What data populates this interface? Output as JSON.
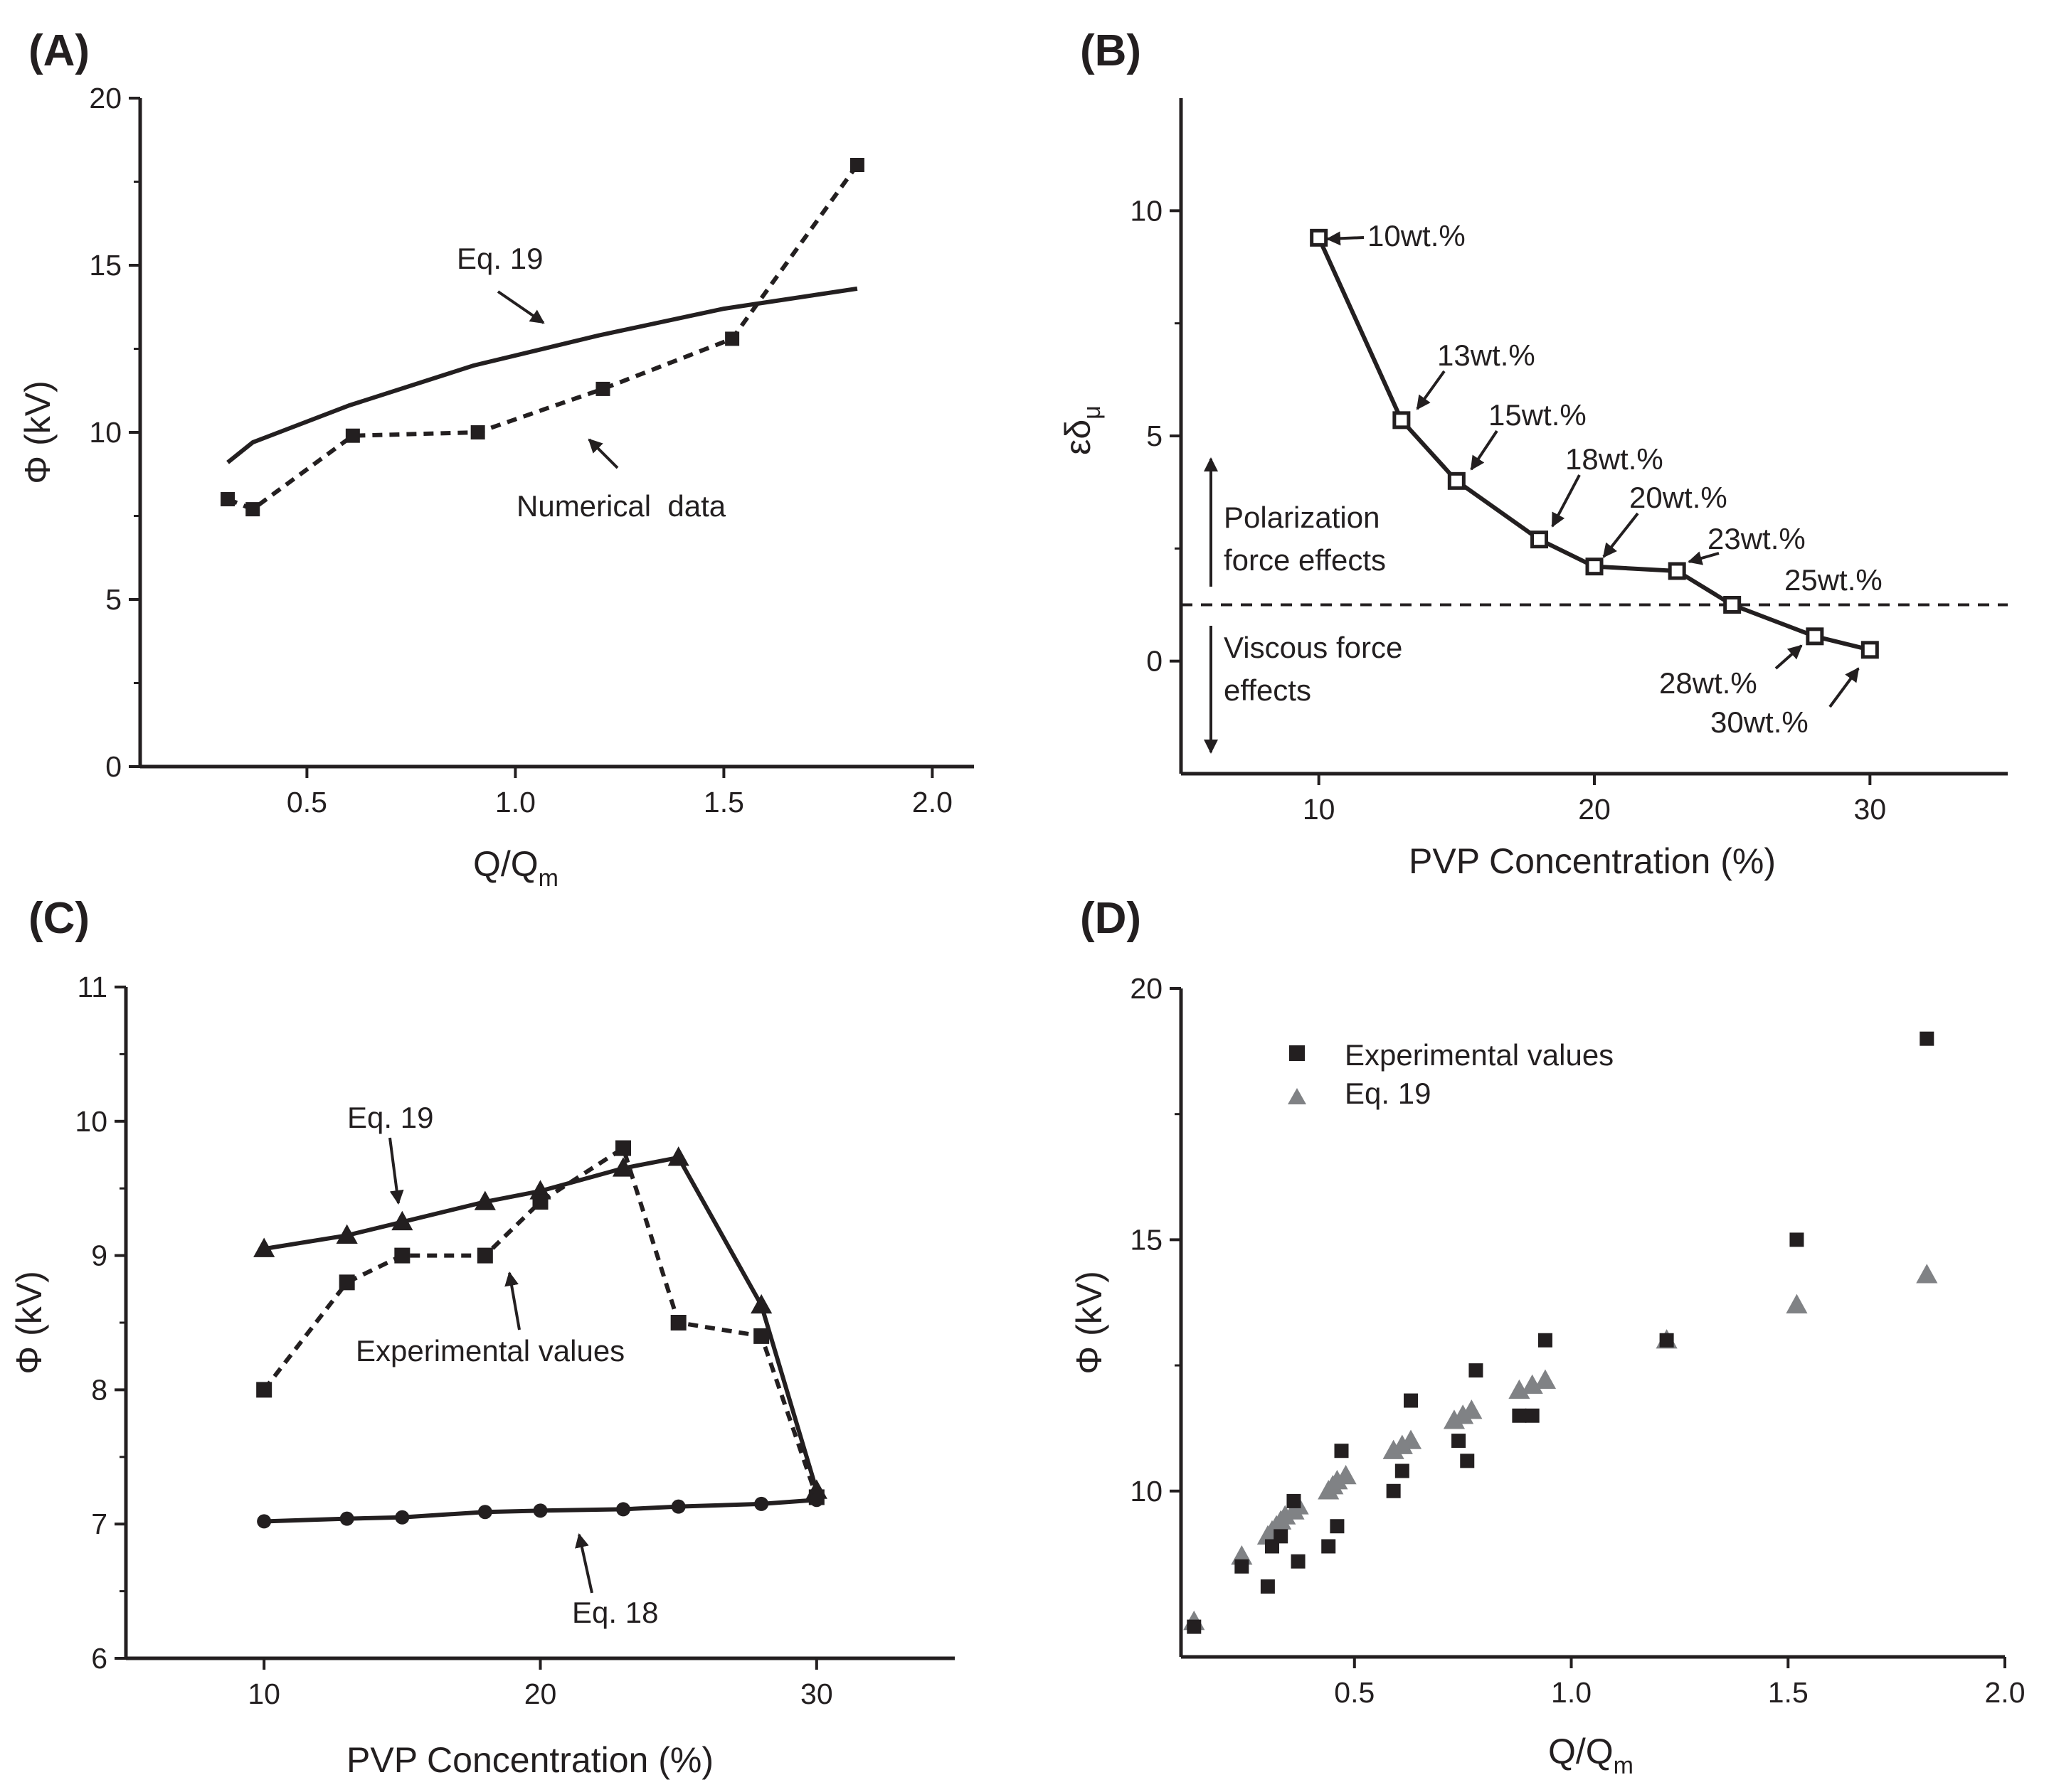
{
  "chart_data": [
    {
      "panel": "(A)",
      "type": "line",
      "xlabel": "Q/Q",
      "xlabel_sub": "m",
      "ylabel": "Φ (kV)",
      "xlim": [
        0.1,
        2.1
      ],
      "ylim": [
        0,
        20
      ],
      "xticks": [
        "0.5",
        "1.0",
        "1.5",
        "2.0"
      ],
      "yticks": [
        "0",
        "5",
        "10",
        "15",
        "20"
      ],
      "series": [
        {
          "name": "Eq. 19",
          "style": "solid",
          "marker": "none",
          "x": [
            0.31,
            0.37,
            0.6,
            0.9,
            1.2,
            1.5,
            1.82
          ],
          "y": [
            9.1,
            9.7,
            10.8,
            12.0,
            12.9,
            13.7,
            14.3
          ]
        },
        {
          "name": "Numerical data",
          "style": "dashed",
          "marker": "square",
          "x": [
            0.31,
            0.37,
            0.61,
            0.91,
            1.21,
            1.52,
            1.82
          ],
          "y": [
            8.0,
            7.7,
            9.9,
            10.0,
            11.3,
            12.8,
            18.0
          ]
        }
      ],
      "annotations": [
        "Eq. 19",
        "Numerical  data"
      ]
    },
    {
      "panel": "(B)",
      "type": "line",
      "xlabel": "PVP Concentration (%)",
      "ylabel": "εδ",
      "ylabel_sub": "μ",
      "xlim": [
        5,
        35
      ],
      "ylim": [
        -2.5,
        12.5
      ],
      "xticks": [
        "10",
        "20",
        "30"
      ],
      "yticks": [
        "0",
        "5",
        "10"
      ],
      "threshold": 1.25,
      "series": [
        {
          "name": "εδμ",
          "marker": "open-square",
          "x": [
            10,
            13,
            15,
            18,
            20,
            23,
            25,
            28,
            30
          ],
          "y": [
            9.4,
            5.35,
            4.0,
            2.7,
            2.1,
            2.0,
            1.25,
            0.55,
            0.25
          ]
        }
      ],
      "point_labels": [
        "10wt.%",
        "13wt.%",
        "15wt.%",
        "18wt.%",
        "20wt.%",
        "23wt.%",
        "25wt.%",
        "28wt.%",
        "30wt.%"
      ],
      "regions": {
        "upper": [
          "Polarization",
          "force effects"
        ],
        "lower": [
          "Viscous force",
          "effects"
        ]
      }
    },
    {
      "panel": "(C)",
      "type": "line",
      "xlabel": "PVP Concentration (%)",
      "ylabel": "Φ (kV)",
      "xlim": [
        5,
        35
      ],
      "ylim": [
        6,
        11
      ],
      "xticks": [
        "10",
        "20",
        "30"
      ],
      "yticks": [
        "6",
        "7",
        "8",
        "9",
        "10",
        "11"
      ],
      "series": [
        {
          "name": "Eq. 19",
          "style": "solid",
          "marker": "triangle",
          "x": [
            10,
            13,
            15,
            18,
            20,
            23,
            25,
            28,
            30
          ],
          "y": [
            9.05,
            9.15,
            9.25,
            9.4,
            9.48,
            9.65,
            9.73,
            8.63,
            7.25
          ]
        },
        {
          "name": "Experimental values",
          "style": "dashed",
          "marker": "square",
          "x": [
            10,
            13,
            15,
            18,
            20,
            23,
            25,
            28,
            30
          ],
          "y": [
            8.0,
            8.8,
            9.0,
            9.0,
            9.4,
            9.8,
            8.5,
            8.4,
            7.2
          ]
        },
        {
          "name": "Eq. 18",
          "style": "solid",
          "marker": "circle",
          "x": [
            10,
            13,
            15,
            18,
            20,
            23,
            25,
            28,
            30
          ],
          "y": [
            7.02,
            7.04,
            7.05,
            7.09,
            7.1,
            7.11,
            7.13,
            7.15,
            7.18
          ]
        }
      ],
      "annotations": [
        "Eq. 19",
        "Experimental values",
        "Eq. 18"
      ]
    },
    {
      "panel": "(D)",
      "type": "scatter",
      "xlabel": "Q/Q",
      "xlabel_sub": "m",
      "ylabel": "Φ (kV)",
      "xlim": [
        0.1,
        2.0
      ],
      "ylim": [
        6.7,
        20
      ],
      "xticks": [
        "0.5",
        "1.0",
        "1.5",
        "2.0"
      ],
      "yticks": [
        "10",
        "15",
        "20"
      ],
      "legend_position": "top-left",
      "series": [
        {
          "name": "Experimental values",
          "marker": "square",
          "color": "#231f20",
          "x": [
            0.13,
            0.24,
            0.3,
            0.31,
            0.33,
            0.36,
            0.37,
            0.44,
            0.46,
            0.47,
            0.59,
            0.61,
            0.63,
            0.74,
            0.76,
            0.78,
            0.88,
            0.91,
            0.94,
            1.22,
            1.52,
            1.82
          ],
          "y": [
            7.3,
            8.5,
            8.1,
            8.9,
            9.1,
            9.8,
            8.6,
            8.9,
            9.3,
            10.8,
            10.0,
            10.4,
            11.8,
            11.0,
            10.6,
            12.4,
            11.5,
            11.5,
            13.0,
            13.0,
            15.0,
            19.0
          ]
        },
        {
          "name": "Eq. 19",
          "marker": "triangle",
          "color": "#808285",
          "x": [
            0.13,
            0.24,
            0.3,
            0.31,
            0.32,
            0.33,
            0.34,
            0.36,
            0.37,
            0.44,
            0.45,
            0.46,
            0.48,
            0.59,
            0.61,
            0.63,
            0.73,
            0.75,
            0.77,
            0.88,
            0.91,
            0.94,
            1.22,
            1.52,
            1.82
          ],
          "y": [
            7.4,
            8.7,
            9.1,
            9.2,
            9.3,
            9.4,
            9.5,
            9.6,
            9.7,
            10.0,
            10.1,
            10.2,
            10.3,
            10.8,
            10.9,
            11.0,
            11.4,
            11.5,
            11.6,
            12.0,
            12.1,
            12.2,
            13.0,
            13.7,
            14.3
          ]
        }
      ]
    }
  ]
}
